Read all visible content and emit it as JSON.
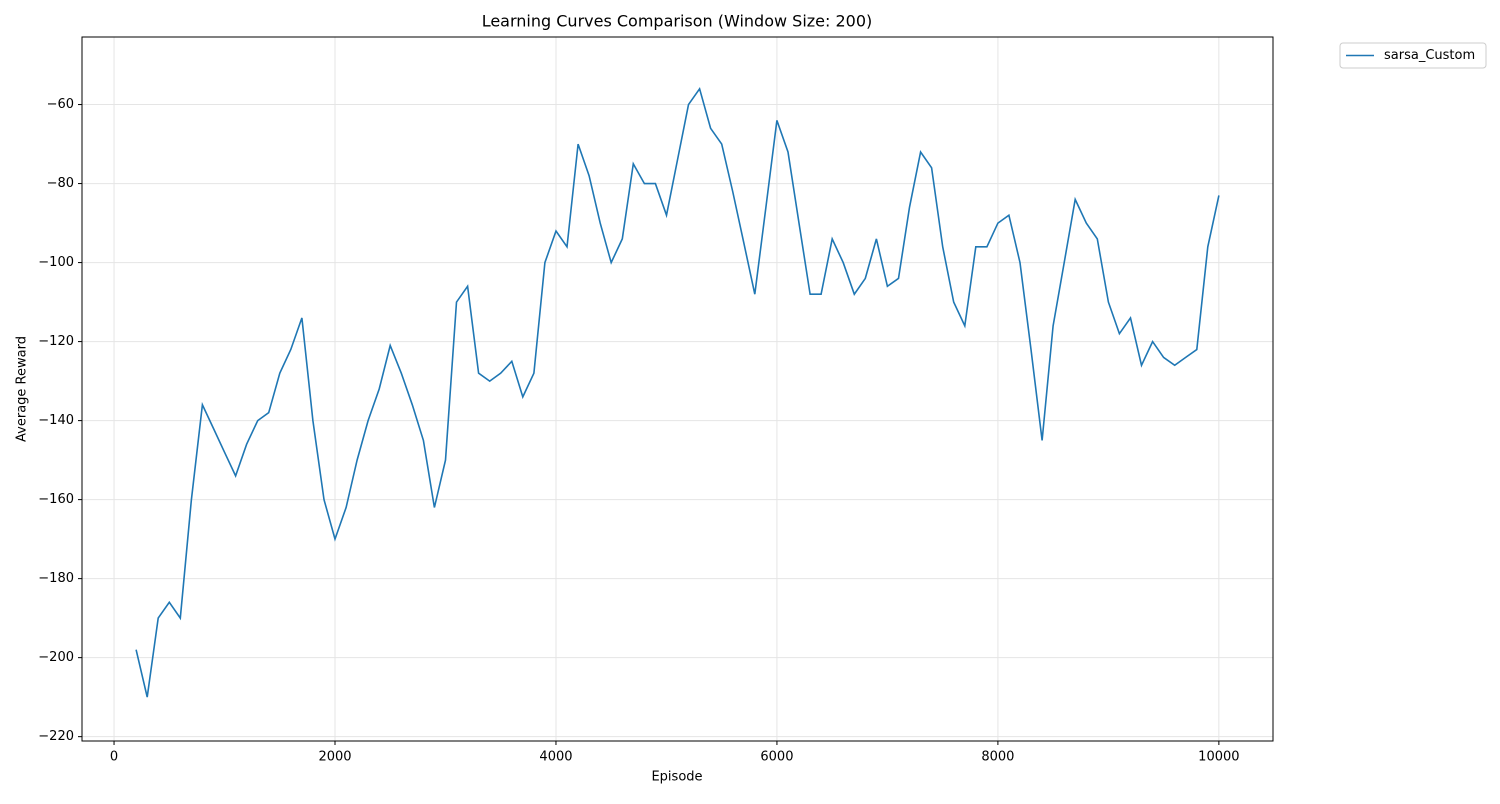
{
  "chart_data": {
    "type": "line",
    "title": "Learning Curves Comparison (Window Size: 200)",
    "xlabel": "Episode",
    "ylabel": "Average Reward",
    "x": [
      200,
      300,
      400,
      500,
      600,
      700,
      800,
      900,
      1000,
      1100,
      1200,
      1300,
      1400,
      1500,
      1600,
      1700,
      1800,
      1900,
      2000,
      2100,
      2200,
      2300,
      2400,
      2500,
      2600,
      2700,
      2800,
      2900,
      3000,
      3100,
      3200,
      3300,
      3400,
      3500,
      3600,
      3700,
      3800,
      3900,
      4000,
      4100,
      4200,
      4300,
      4400,
      4500,
      4600,
      4700,
      4800,
      4900,
      5000,
      5100,
      5200,
      5300,
      5400,
      5500,
      5600,
      5700,
      5800,
      5900,
      6000,
      6100,
      6200,
      6300,
      6400,
      6500,
      6600,
      6700,
      6800,
      6900,
      7000,
      7100,
      7200,
      7300,
      7400,
      7500,
      7600,
      7700,
      7800,
      7900,
      8000,
      8100,
      8200,
      8300,
      8400,
      8500,
      8600,
      8700,
      8800,
      8900,
      9000,
      9100,
      9200,
      9300,
      9400,
      9500,
      9600,
      9700,
      9800,
      9900,
      10000
    ],
    "series": [
      {
        "name": "sarsa_Custom",
        "color": "#1f77b4",
        "values": [
          -198,
          -210,
          -190,
          -186,
          -190,
          -160,
          -136,
          -142,
          -148,
          -154,
          -146,
          -140,
          -138,
          -128,
          -122,
          -114,
          -140,
          -160,
          -170,
          -162,
          -150,
          -140,
          -132,
          -121,
          -128,
          -136,
          -145,
          -162,
          -150,
          -110,
          -106,
          -128,
          -130,
          -128,
          -125,
          -134,
          -128,
          -100,
          -92,
          -96,
          -70,
          -78,
          -90,
          -100,
          -94,
          -75,
          -80,
          -80,
          -88,
          -74,
          -60,
          -56,
          -66,
          -70,
          -82,
          -95,
          -108,
          -86,
          -64,
          -72,
          -90,
          -108,
          -108,
          -94,
          -100,
          -108,
          -104,
          -94,
          -106,
          -104,
          -86,
          -72,
          -76,
          -96,
          -110,
          -116,
          -96,
          -96,
          -90,
          -88,
          -100,
          -122,
          -145,
          -116,
          -100,
          -84,
          -90,
          -94,
          -110,
          -118,
          -114,
          -126,
          -120,
          -124,
          -126,
          -124,
          -122,
          -96,
          -83
        ]
      }
    ],
    "xlim": [
      -290,
      10490
    ],
    "xticks": [
      0,
      2000,
      4000,
      6000,
      8000,
      10000
    ],
    "ylim": [
      -221.1,
      -42.9
    ],
    "yticks": [
      {
        "value": -220,
        "label": "−220"
      },
      {
        "value": -200,
        "label": "−200"
      },
      {
        "value": -180,
        "label": "−180"
      },
      {
        "value": -160,
        "label": "−160"
      },
      {
        "value": -140,
        "label": "−140"
      },
      {
        "value": -120,
        "label": "−120"
      },
      {
        "value": -100,
        "label": "−100"
      },
      {
        "value": -80,
        "label": "−80"
      },
      {
        "value": -60,
        "label": "−60"
      }
    ],
    "grid": true,
    "legend": "outside-upper-right"
  }
}
